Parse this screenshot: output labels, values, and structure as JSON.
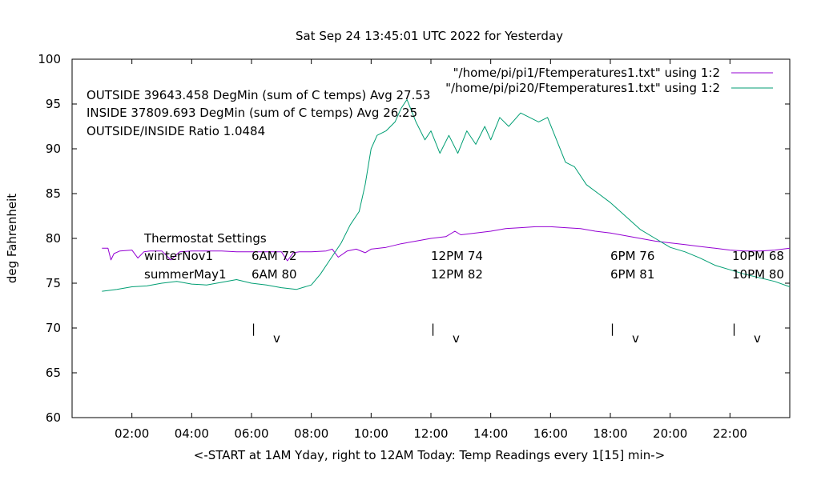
{
  "chart_data": {
    "type": "line",
    "title": "Sat Sep 24 13:45:01 UTC 2022 for Yesterday",
    "xlabel": "<-START at 1AM Yday, right to 12AM Today:  Temp Readings every 1[15] min->",
    "ylabel": "deg Fahrenheit",
    "xlim": [
      0,
      24
    ],
    "ylim": [
      60,
      100
    ],
    "grid": false,
    "legend_position": "top-right",
    "x_ticks": [
      {
        "value": 2,
        "label": "02:00"
      },
      {
        "value": 4,
        "label": "04:00"
      },
      {
        "value": 6,
        "label": "06:00"
      },
      {
        "value": 8,
        "label": "08:00"
      },
      {
        "value": 10,
        "label": "10:00"
      },
      {
        "value": 12,
        "label": "12:00"
      },
      {
        "value": 14,
        "label": "14:00"
      },
      {
        "value": 16,
        "label": "16:00"
      },
      {
        "value": 18,
        "label": "18:00"
      },
      {
        "value": 20,
        "label": "20:00"
      },
      {
        "value": 22,
        "label": "22:00"
      }
    ],
    "y_ticks": [
      {
        "value": 60,
        "label": "60"
      },
      {
        "value": 65,
        "label": "65"
      },
      {
        "value": 70,
        "label": "70"
      },
      {
        "value": 75,
        "label": "75"
      },
      {
        "value": 80,
        "label": "80"
      },
      {
        "value": 85,
        "label": "85"
      },
      {
        "value": 90,
        "label": "90"
      },
      {
        "value": 95,
        "label": "95"
      },
      {
        "value": 100,
        "label": "100"
      }
    ],
    "series": [
      {
        "name": "\"/home/pi/pi1/Ftemperatures1.txt\" using 1:2",
        "color": "#9400d3",
        "x": [
          1.0,
          1.2,
          1.3,
          1.4,
          1.6,
          2.0,
          2.2,
          2.4,
          2.6,
          3.0,
          3.3,
          3.6,
          4.0,
          4.5,
          5.0,
          5.5,
          6.0,
          6.5,
          7.0,
          7.2,
          7.4,
          7.6,
          8.0,
          8.5,
          8.7,
          8.9,
          9.2,
          9.5,
          9.8,
          10.0,
          10.5,
          11.0,
          11.5,
          12.0,
          12.5,
          12.8,
          13.0,
          13.5,
          14.0,
          14.5,
          15.0,
          15.5,
          16.0,
          16.5,
          17.0,
          17.5,
          18.0,
          18.5,
          19.0,
          19.5,
          20.0,
          20.5,
          21.0,
          21.5,
          22.0,
          22.5,
          23.0,
          23.5,
          24.0
        ],
        "values": [
          78.9,
          78.9,
          77.6,
          78.3,
          78.6,
          78.7,
          77.8,
          78.5,
          78.6,
          78.6,
          77.6,
          78.5,
          78.6,
          78.6,
          78.6,
          78.5,
          78.5,
          78.5,
          78.5,
          77.5,
          78.4,
          78.5,
          78.5,
          78.6,
          78.8,
          77.9,
          78.6,
          78.8,
          78.4,
          78.8,
          79.0,
          79.4,
          79.7,
          80.0,
          80.2,
          80.8,
          80.4,
          80.6,
          80.8,
          81.1,
          81.2,
          81.3,
          81.3,
          81.2,
          81.1,
          80.8,
          80.6,
          80.3,
          80.0,
          79.7,
          79.5,
          79.3,
          79.1,
          78.9,
          78.7,
          78.6,
          78.6,
          78.7,
          78.9
        ]
      },
      {
        "name": "\"/home/pi/pi20/Ftemperatures1.txt\" using 1:2",
        "color": "#009e73",
        "x": [
          1.0,
          1.5,
          2.0,
          2.5,
          3.0,
          3.5,
          4.0,
          4.5,
          5.0,
          5.5,
          6.0,
          6.5,
          7.0,
          7.5,
          8.0,
          8.3,
          8.6,
          9.0,
          9.3,
          9.6,
          9.8,
          10.0,
          10.2,
          10.5,
          10.8,
          11.0,
          11.2,
          11.5,
          11.8,
          12.0,
          12.3,
          12.6,
          12.9,
          13.2,
          13.5,
          13.8,
          14.0,
          14.3,
          14.6,
          15.0,
          15.3,
          15.6,
          15.9,
          16.2,
          16.5,
          16.8,
          17.2,
          17.6,
          18.0,
          18.5,
          19.0,
          19.5,
          20.0,
          20.5,
          21.0,
          21.5,
          22.0,
          22.5,
          23.0,
          23.5,
          24.0
        ],
        "values": [
          74.1,
          74.3,
          74.6,
          74.7,
          75.0,
          75.2,
          74.9,
          74.8,
          75.1,
          75.4,
          75.0,
          74.8,
          74.5,
          74.3,
          74.8,
          76.0,
          77.5,
          79.5,
          81.5,
          83.0,
          86.0,
          90.0,
          91.5,
          92.0,
          93.0,
          94.5,
          95.5,
          93.0,
          91.0,
          92.0,
          89.5,
          91.5,
          89.5,
          92.0,
          90.5,
          92.5,
          91.0,
          93.5,
          92.5,
          94.0,
          93.5,
          93.0,
          93.5,
          91.0,
          88.5,
          88.0,
          86.0,
          85.0,
          84.0,
          82.5,
          81.0,
          80.0,
          79.0,
          78.5,
          77.8,
          77.0,
          76.5,
          76.0,
          75.6,
          75.2,
          74.6
        ]
      }
    ],
    "annotations": {
      "stats": [
        "OUTSIDE 39643.458 DegMin (sum of C temps) Avg 27.53",
        "INSIDE 37809.693 DegMin (sum of C temps) Avg 26.25",
        "OUTSIDE/INSIDE Ratio 1.0484"
      ],
      "thermostat_title": "Thermostat Settings",
      "thermostat_rows": [
        {
          "label": "winterNov1",
          "settings": [
            "6AM 72",
            "12PM 74",
            "6PM 76",
            "10PM 68"
          ]
        },
        {
          "label": "summerMay1",
          "settings": [
            "6AM 80",
            "12PM 82",
            "6PM 81",
            "10PM 80"
          ]
        }
      ],
      "markers": [
        {
          "time": 6.0,
          "bar": "|",
          "v": "v"
        },
        {
          "time": 12.0,
          "bar": "|",
          "v": "v"
        },
        {
          "time": 18.0,
          "bar": "|",
          "v": "v"
        },
        {
          "time": 22.0,
          "bar": "|",
          "v": "v"
        }
      ]
    }
  }
}
